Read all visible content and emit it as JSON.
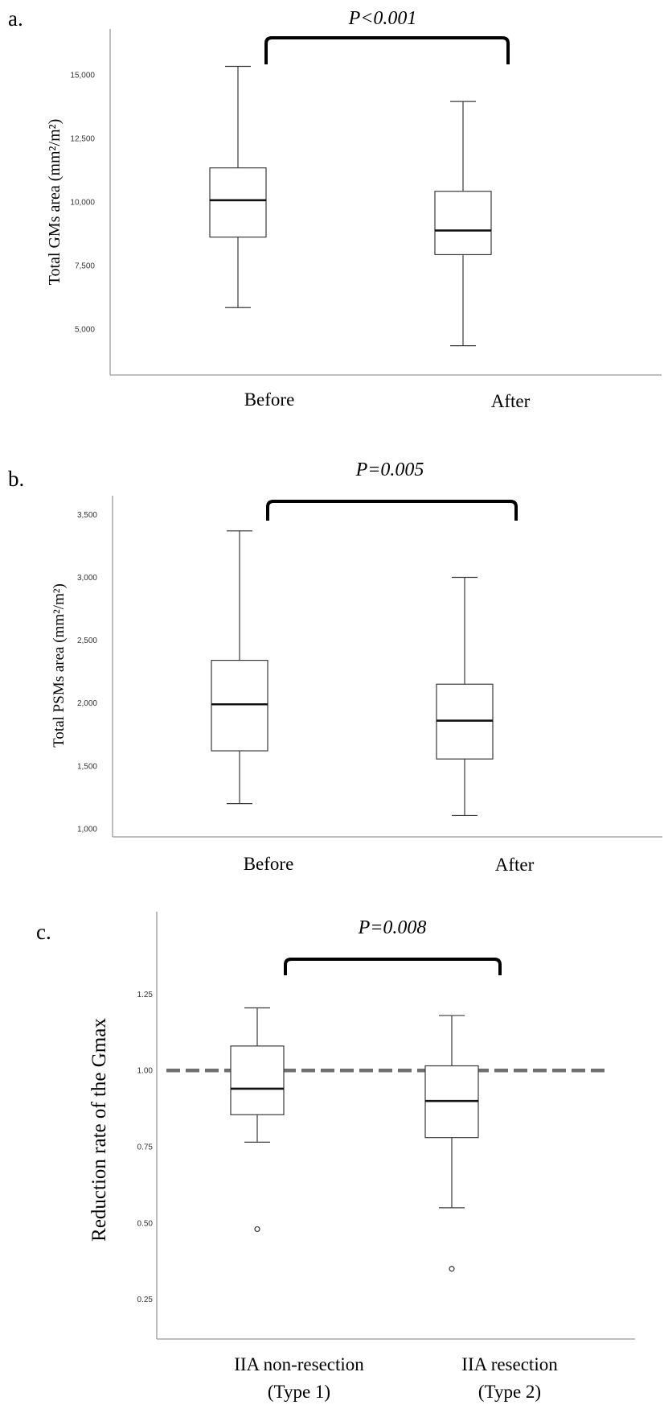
{
  "chart_data": [
    {
      "type": "box",
      "panel_label": "a.",
      "ylabel": "Total GMs area (mm²/m²)",
      "categories": [
        "Before",
        "After"
      ],
      "yticks": [
        5000,
        7500,
        10000,
        12500,
        15000
      ],
      "ytick_labels": [
        "5,000",
        "7,500",
        "10,000",
        "12,500",
        "15,000"
      ],
      "ylim": [
        3200,
        16800
      ],
      "boxes": [
        {
          "category": "Before",
          "min": 5850,
          "q1": 8620,
          "median": 10070,
          "q3": 11340,
          "max": 15330,
          "outliers": []
        },
        {
          "category": "After",
          "min": 4350,
          "q1": 7930,
          "median": 8880,
          "q3": 10420,
          "max": 13950,
          "outliers": []
        }
      ],
      "significance": {
        "label": "P<0.001",
        "between": [
          "Before",
          "After"
        ]
      }
    },
    {
      "type": "box",
      "panel_label": "b.",
      "ylabel": "Total PSMs area (mm²/m²)",
      "categories": [
        "Before",
        "After"
      ],
      "yticks": [
        1000,
        1500,
        2000,
        2500,
        3000,
        3500
      ],
      "ytick_labels": [
        "1,000",
        "1,500",
        "2,000",
        "2,500",
        "3,000",
        "3,500"
      ],
      "ylim": [
        935,
        3650
      ],
      "boxes": [
        {
          "category": "Before",
          "min": 1200,
          "q1": 1620,
          "median": 1990,
          "q3": 2340,
          "max": 3370,
          "outliers": []
        },
        {
          "category": "After",
          "min": 1105,
          "q1": 1555,
          "median": 1860,
          "q3": 2150,
          "max": 3000,
          "outliers": []
        }
      ],
      "significance": {
        "label": "P=0.005",
        "between": [
          "Before",
          "After"
        ]
      }
    },
    {
      "type": "box",
      "panel_label": "c.",
      "ylabel": "Reduction rate of the Gmax",
      "categories": [
        "IIA non-resection\n(Type 1)",
        "IIA resection\n(Type 2)"
      ],
      "category_lines": [
        [
          "IIA non-resection",
          "(Type 1)"
        ],
        [
          "IIA resection",
          "(Type 2)"
        ]
      ],
      "yticks": [
        0.25,
        0.5,
        0.75,
        1.0,
        1.25
      ],
      "ytick_labels": [
        "0.25",
        "0.50",
        "0.75",
        "1.00",
        "1.25"
      ],
      "ylim": [
        0.12,
        1.52
      ],
      "reference_line": {
        "y": 1.0,
        "style": "dashed"
      },
      "boxes": [
        {
          "category": "IIA non-resection (Type 1)",
          "min": 0.765,
          "q1": 0.855,
          "median": 0.94,
          "q3": 1.08,
          "max": 1.205,
          "outliers": [
            0.48
          ]
        },
        {
          "category": "IIA resection (Type 2)",
          "min": 0.55,
          "q1": 0.78,
          "median": 0.9,
          "q3": 1.015,
          "max": 1.18,
          "outliers": [
            0.35
          ]
        }
      ],
      "significance": {
        "label": "P=0.008",
        "between": [
          "IIA non-resection (Type 1)",
          "IIA resection (Type 2)"
        ]
      }
    }
  ]
}
